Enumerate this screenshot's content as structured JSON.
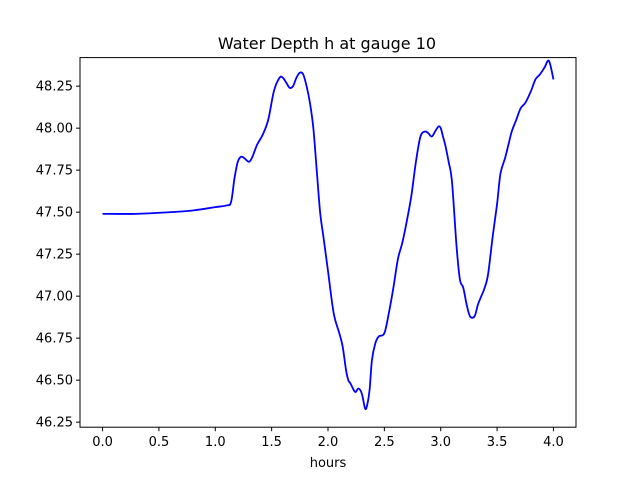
{
  "chart_data": {
    "type": "line",
    "title": "Water Depth h at gauge 10",
    "xlabel": "hours",
    "ylabel": "",
    "xlim": [
      -0.2,
      4.2
    ],
    "ylim": [
      46.22,
      48.42
    ],
    "x_ticks": [
      0.0,
      0.5,
      1.0,
      1.5,
      2.0,
      2.5,
      3.0,
      3.5,
      4.0
    ],
    "x_tick_labels": [
      "0.0",
      "0.5",
      "1.0",
      "1.5",
      "2.0",
      "2.5",
      "3.0",
      "3.5",
      "4.0"
    ],
    "y_ticks": [
      46.25,
      46.5,
      46.75,
      47.0,
      47.25,
      47.5,
      47.75,
      48.0,
      48.25
    ],
    "y_tick_labels": [
      "46.25",
      "46.50",
      "46.75",
      "47.00",
      "47.25",
      "47.50",
      "47.75",
      "48.00",
      "48.25"
    ],
    "grid": false,
    "series": [
      {
        "color": "#0000ff",
        "x": [
          0.0,
          0.3,
          0.6,
          0.8,
          1.0,
          1.1,
          1.14,
          1.17,
          1.2,
          1.23,
          1.26,
          1.3,
          1.33,
          1.37,
          1.42,
          1.47,
          1.52,
          1.57,
          1.6,
          1.63,
          1.66,
          1.69,
          1.72,
          1.75,
          1.78,
          1.81,
          1.84,
          1.87,
          1.9,
          1.93,
          1.96,
          2.0,
          2.05,
          2.1,
          2.13,
          2.16,
          2.18,
          2.2,
          2.24,
          2.27,
          2.3,
          2.33,
          2.35,
          2.37,
          2.39,
          2.42,
          2.45,
          2.5,
          2.54,
          2.58,
          2.62,
          2.66,
          2.7,
          2.74,
          2.78,
          2.82,
          2.86,
          2.89,
          2.92,
          2.95,
          2.98,
          3.0,
          3.02,
          3.04,
          3.07,
          3.1,
          3.14,
          3.17,
          3.2,
          3.23,
          3.26,
          3.3,
          3.33,
          3.36,
          3.39,
          3.42,
          3.46,
          3.5,
          3.53,
          3.57,
          3.6,
          3.63,
          3.67,
          3.71,
          3.75,
          3.8,
          3.84,
          3.88,
          3.92,
          3.96,
          4.0
        ],
        "y": [
          47.49,
          47.49,
          47.5,
          47.51,
          47.53,
          47.54,
          47.56,
          47.7,
          47.8,
          47.83,
          47.82,
          47.8,
          47.83,
          47.9,
          47.96,
          48.05,
          48.22,
          48.3,
          48.3,
          48.27,
          48.24,
          48.25,
          48.3,
          48.33,
          48.32,
          48.25,
          48.15,
          48.0,
          47.75,
          47.5,
          47.35,
          47.15,
          46.9,
          46.78,
          46.7,
          46.56,
          46.5,
          46.48,
          46.43,
          46.45,
          46.42,
          46.33,
          46.36,
          46.45,
          46.62,
          46.72,
          46.76,
          46.78,
          46.9,
          47.05,
          47.22,
          47.32,
          47.45,
          47.6,
          47.8,
          47.95,
          47.98,
          47.97,
          47.95,
          47.98,
          48.01,
          48.0,
          47.95,
          47.9,
          47.8,
          47.68,
          47.3,
          47.1,
          47.05,
          46.95,
          46.88,
          46.88,
          46.95,
          47.0,
          47.05,
          47.13,
          47.35,
          47.55,
          47.73,
          47.82,
          47.9,
          47.98,
          48.05,
          48.12,
          48.15,
          48.22,
          48.29,
          48.32,
          48.36,
          48.4,
          48.29
        ]
      }
    ]
  }
}
